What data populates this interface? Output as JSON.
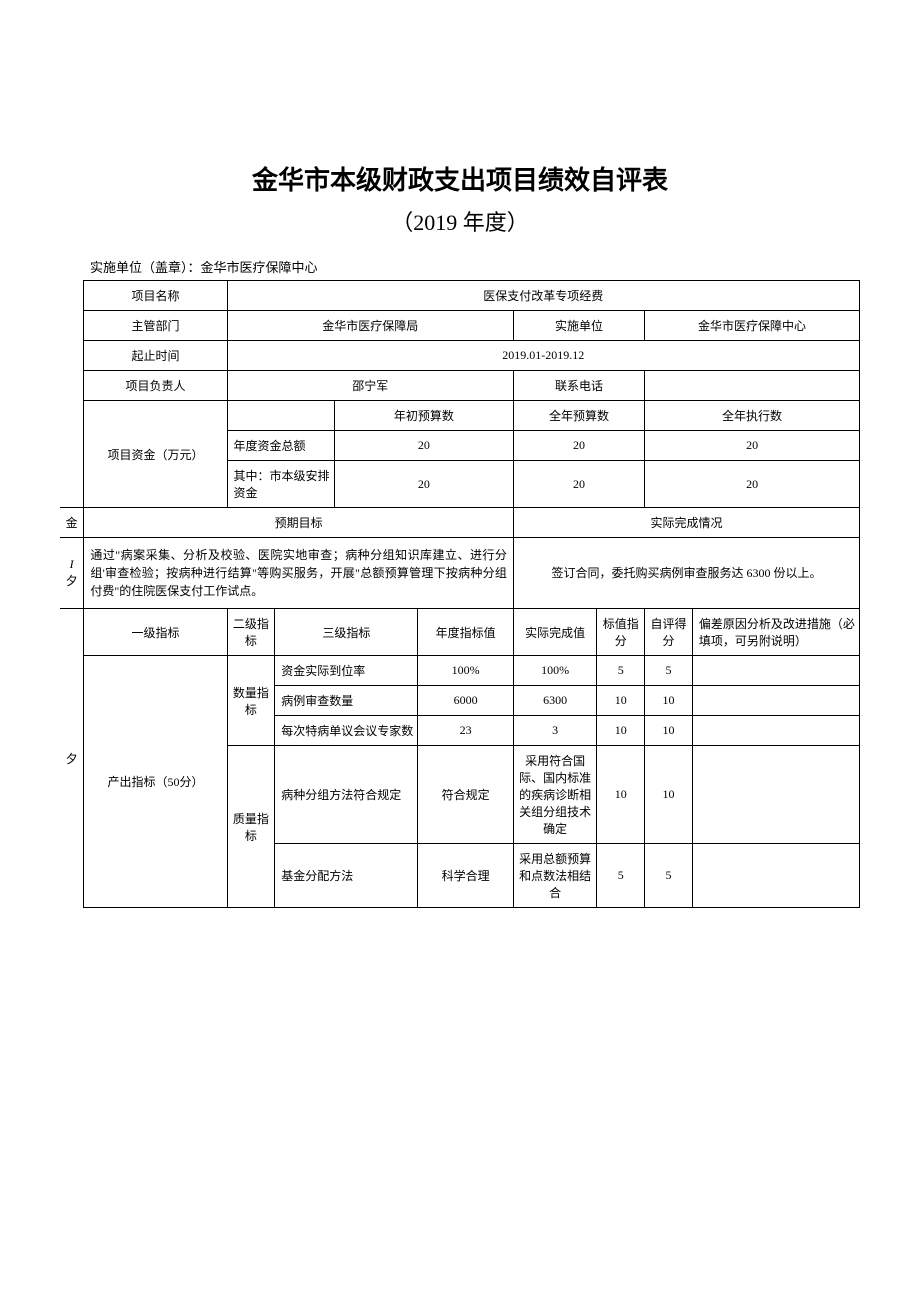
{
  "title": "金华市本级财政支出项目绩效自评表",
  "subtitle": "（2019 年度）",
  "org_line": "实施单位（盖章）：金华市医疗保障中心",
  "labels": {
    "project_name": "项目名称",
    "supervisor": "主管部门",
    "impl_unit": "实施单位",
    "period": "起止时间",
    "leader": "项目负责人",
    "phone": "联系电话",
    "funds": "项目资金（万元）",
    "year_init_budget": "年初预算数",
    "year_full_budget": "全年预算数",
    "year_exec": "全年执行数",
    "fund_total": "年度资金总额",
    "fund_city": "其中：市本级安排资金",
    "expected_goal": "预期目标",
    "actual_completion": "实际完成情况",
    "lvl1": "一级指标",
    "lvl2": "二级指标",
    "lvl3": "三级指标",
    "annual_target": "年度指标值",
    "actual_value": "实际完成值",
    "std_score": "标值指分",
    "self_score": "自评得分",
    "deviation": "偏差原因分析及改进措施（必填项，可另附说明）"
  },
  "values": {
    "project_name": "医保支付改革专项经费",
    "supervisor": "金华市医疗保障局",
    "impl_unit": "金华市医疗保障中心",
    "period": "2019.01-2019.12",
    "leader": "邵宁军",
    "phone": "",
    "fund_total_init": "20",
    "fund_total_full": "20",
    "fund_total_exec": "20",
    "fund_city_init": "20",
    "fund_city_full": "20",
    "fund_city_exec": "20",
    "expected_goal_text": "通过\"病案采集、分析及校验、医院实地审查；病种分组知识库建立、进行分组'审查检验；按病种进行结算\"等购买服务，开展\"总额预算管理下按病种分组付费\"的住院医保支付工作试点。",
    "actual_completion_text": "签订合同，委托购买病例审查服务达 6300 份以上。"
  },
  "side": {
    "col_a": "金",
    "col_b1": "I",
    "col_b2": "夕",
    "col_c": "夕"
  },
  "indicators": {
    "output": {
      "name": "产出指标（50分）",
      "quantity": {
        "name": "数量指标",
        "rows": [
          {
            "l3": "资金实际到位率",
            "target": "100%",
            "actual": "100%",
            "std": "5",
            "self": "5",
            "dev": ""
          },
          {
            "l3": "病例审查数量",
            "target": "6000",
            "actual": "6300",
            "std": "10",
            "self": "10",
            "dev": ""
          },
          {
            "l3": "每次特病单议会议专家数",
            "target": "23",
            "actual": "3",
            "std": "10",
            "self": "10",
            "dev": ""
          }
        ]
      },
      "quality": {
        "name": "质量指标",
        "rows": [
          {
            "l3": "病种分组方法符合规定",
            "target": "符合规定",
            "actual": "采用符合国际、国内标准的疾病诊断相关组分组技术确定",
            "std": "10",
            "self": "10",
            "dev": ""
          },
          {
            "l3": "基金分配方法",
            "target": "科学合理",
            "actual": "采用总额预算和点数法相结合",
            "std": "5",
            "self": "5",
            "dev": ""
          }
        ]
      }
    }
  }
}
